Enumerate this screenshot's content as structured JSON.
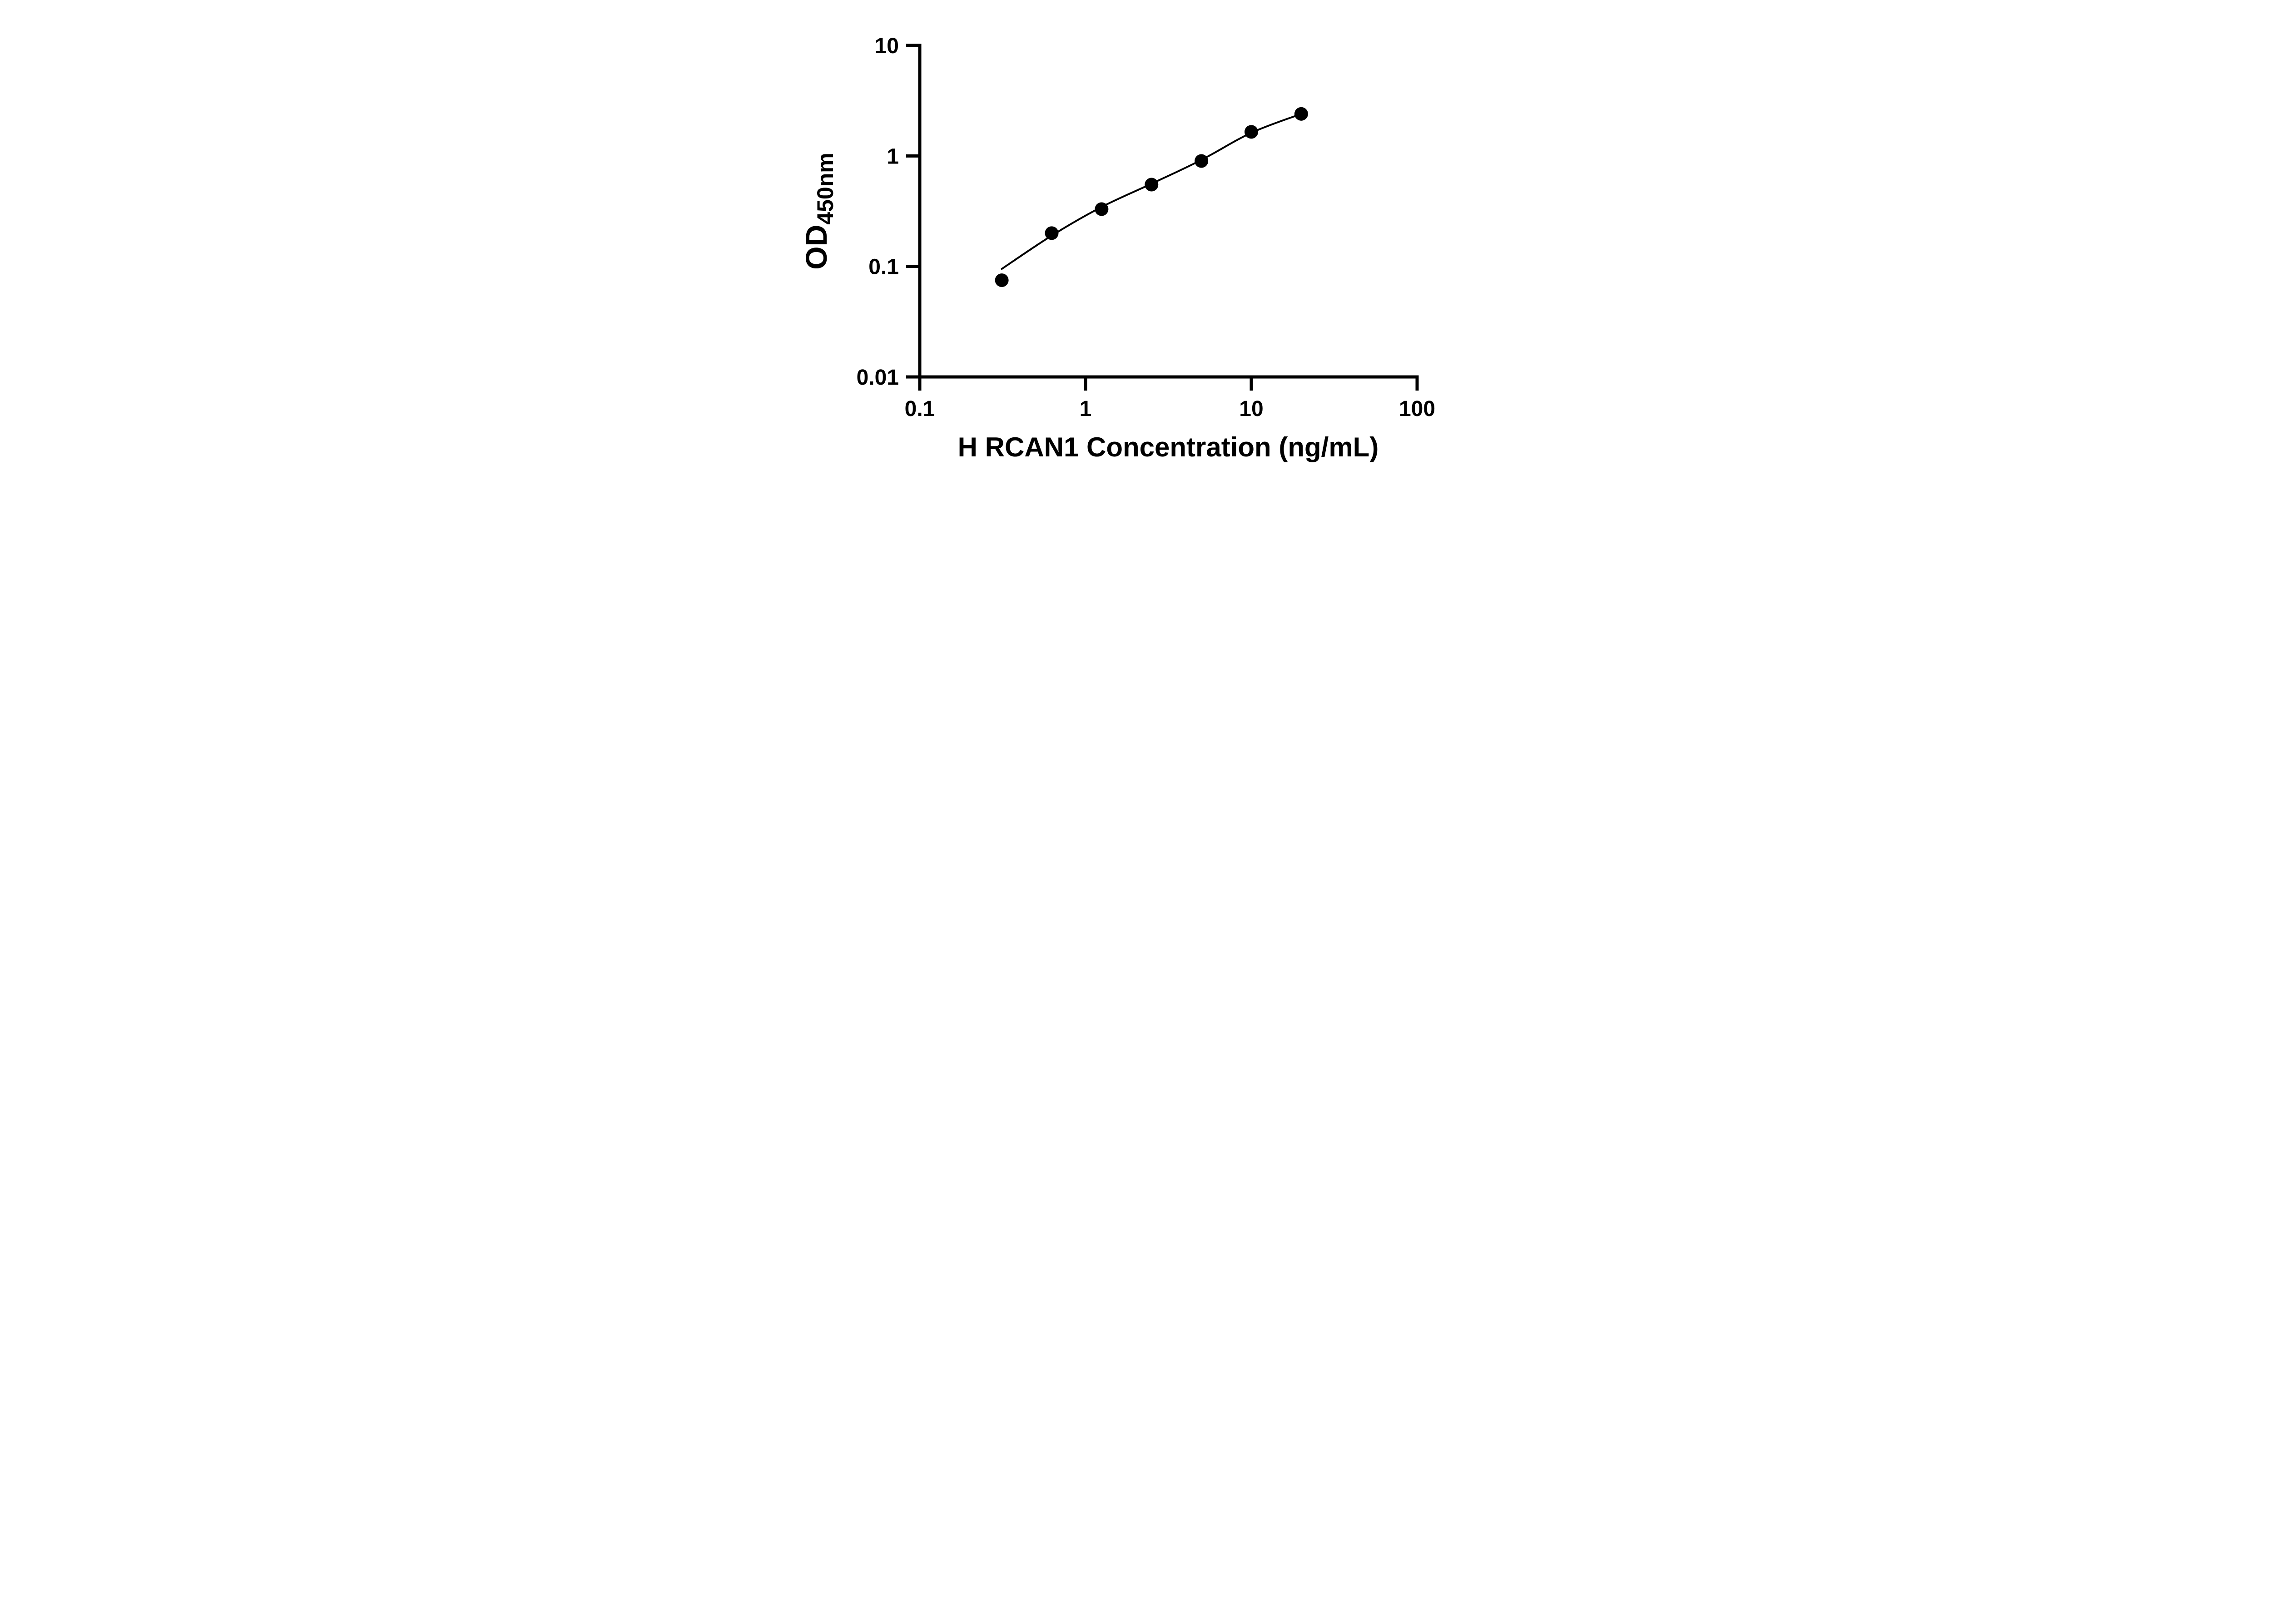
{
  "chart_data": {
    "type": "scatter",
    "title": "",
    "xlabel": "H RCAN1 Concentration (ng/mL)",
    "ylabel_main": "OD",
    "ylabel_sub": "450nm",
    "x_scale": "log",
    "y_scale": "log",
    "xlim": [
      0.1,
      100
    ],
    "ylim": [
      0.01,
      10
    ],
    "grid": false,
    "legend": false,
    "x_ticks": [
      {
        "value": 0.1,
        "label": "0.1"
      },
      {
        "value": 1,
        "label": "1"
      },
      {
        "value": 10,
        "label": "10"
      },
      {
        "value": 100,
        "label": "100"
      }
    ],
    "y_ticks": [
      {
        "value": 0.01,
        "label": "0.01"
      },
      {
        "value": 0.1,
        "label": "0.1"
      },
      {
        "value": 1,
        "label": "1"
      },
      {
        "value": 10,
        "label": "10"
      }
    ],
    "series": [
      {
        "name": "standard-points",
        "type": "scatter",
        "marker": "filled-circle",
        "color": "#000000",
        "points": [
          {
            "x": 0.3125,
            "y": 0.075
          },
          {
            "x": 0.625,
            "y": 0.2
          },
          {
            "x": 1.25,
            "y": 0.33
          },
          {
            "x": 2.5,
            "y": 0.55
          },
          {
            "x": 5,
            "y": 0.9
          },
          {
            "x": 10,
            "y": 1.65
          },
          {
            "x": 20,
            "y": 2.4
          }
        ]
      },
      {
        "name": "fit-curve",
        "type": "line",
        "color": "#000000",
        "points": [
          {
            "x": 0.3125,
            "y": 0.095
          },
          {
            "x": 0.625,
            "y": 0.19
          },
          {
            "x": 1.25,
            "y": 0.345
          },
          {
            "x": 2.5,
            "y": 0.56
          },
          {
            "x": 5,
            "y": 0.92
          },
          {
            "x": 10,
            "y": 1.62
          },
          {
            "x": 20,
            "y": 2.4
          }
        ]
      }
    ],
    "colors": {
      "axis": "#000000",
      "marker": "#000000",
      "line": "#000000",
      "background": "#ffffff"
    }
  }
}
